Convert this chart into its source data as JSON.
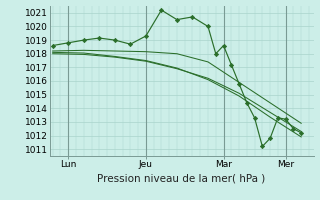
{
  "background_color": "#cceee8",
  "grid_color": "#aad4cc",
  "line_color": "#2a6e2a",
  "marker_color": "#2a6e2a",
  "ylim": [
    1010.5,
    1021.5
  ],
  "yticks": [
    1011,
    1012,
    1013,
    1014,
    1015,
    1016,
    1017,
    1018,
    1019,
    1020,
    1021
  ],
  "xlabel": "Pression niveau de la mer( hPa )",
  "xlabel_fontsize": 7.5,
  "tick_fontsize": 6.5,
  "xtick_labels": [
    "Lun",
    "Jeu",
    "Mar",
    "Mer"
  ],
  "xtick_positions": [
    0.5,
    3.0,
    5.5,
    7.5
  ],
  "series": [
    [
      0,
      1018.6,
      0.5,
      1018.8,
      1.0,
      1019.0,
      1.5,
      1019.15,
      2.0,
      1019.0,
      2.5,
      1018.7,
      3.0,
      1019.3,
      3.5,
      1021.2,
      4.0,
      1020.5,
      4.5,
      1020.7,
      5.0,
      1020.0,
      5.25,
      1018.0,
      5.5,
      1018.6,
      5.75,
      1017.2,
      6.0,
      1015.8,
      6.25,
      1014.4,
      6.5,
      1013.3,
      6.75,
      1011.2,
      7.0,
      1011.8,
      7.25,
      1013.3,
      7.5,
      1013.2,
      7.75,
      1012.5,
      8.0,
      1012.2
    ],
    [
      0,
      1018.2,
      1.0,
      1018.25,
      2.0,
      1018.2,
      3.0,
      1018.15,
      4.0,
      1018.0,
      5.0,
      1017.4,
      6.0,
      1015.9,
      7.0,
      1014.4,
      8.0,
      1012.9
    ],
    [
      0,
      1018.0,
      1.0,
      1017.95,
      2.0,
      1017.75,
      3.0,
      1017.45,
      4.0,
      1016.9,
      5.0,
      1016.2,
      6.0,
      1015.1,
      7.0,
      1013.7,
      8.0,
      1012.3
    ],
    [
      0,
      1018.1,
      1.0,
      1018.05,
      2.0,
      1017.8,
      3.0,
      1017.5,
      4.0,
      1016.95,
      5.0,
      1016.1,
      6.0,
      1014.9,
      7.0,
      1013.35,
      8.0,
      1011.9
    ]
  ],
  "vlines": [
    0.5,
    3.0,
    5.5,
    7.5
  ],
  "xlim": [
    -0.1,
    8.4
  ]
}
